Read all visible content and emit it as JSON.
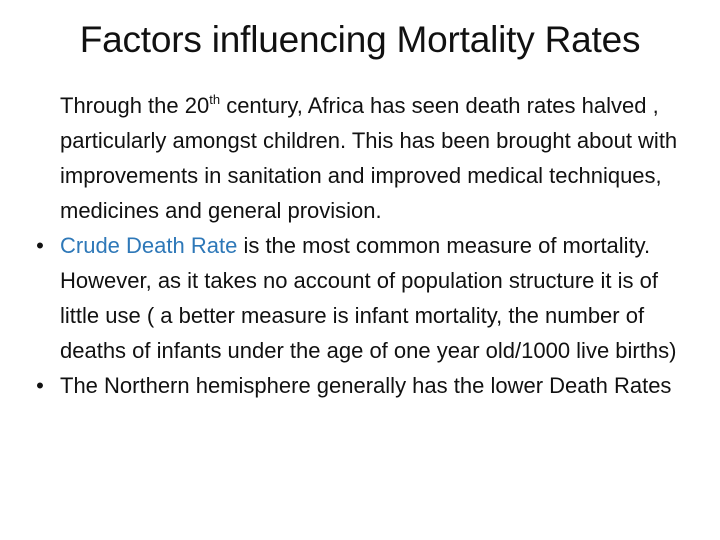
{
  "slide": {
    "title": "Factors influencing Mortality Rates",
    "paragraph1": {
      "text_before_sup": "Through the 20",
      "sup": "th",
      "text_after_sup": " century, Africa has seen death rates halved , particularly amongst children. This has been brought about with improvements in sanitation and improved medical techniques, medicines and general provision."
    },
    "bullet2": {
      "marker": "•",
      "term": "Crude Death Rate",
      "text": " is the most common measure of mortality. However, as it takes no account of population structure it is of little use ( a better measure is infant mortality, the number of deaths of infants under the age of one year old/1000 live births)"
    },
    "bullet3": {
      "marker": "•",
      "text": "The Northern hemisphere  generally has the lower Death Rates"
    }
  },
  "colors": {
    "text": "#111111",
    "accent": "#2e78b8",
    "background": "#ffffff"
  }
}
